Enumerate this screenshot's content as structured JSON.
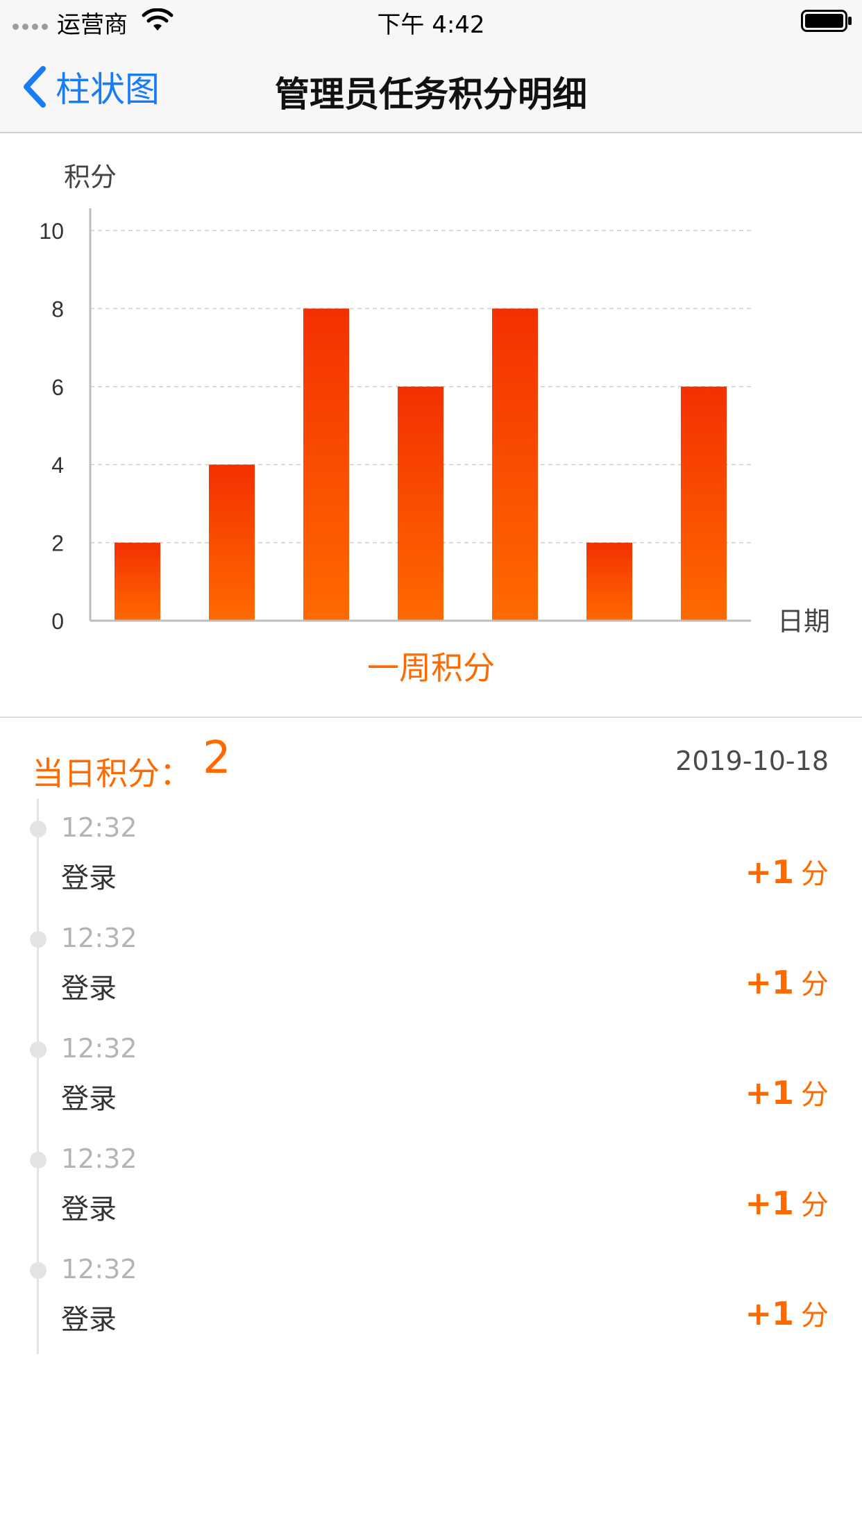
{
  "status_bar": {
    "carrier": "运营商",
    "time": "下午 4:42",
    "icons": [
      "signal-dots-icon",
      "wifi-icon",
      "battery-icon"
    ]
  },
  "nav": {
    "back_label": "柱状图",
    "title": "管理员任务积分明细",
    "accent_color": "#1a7cf5"
  },
  "chart_data": {
    "type": "bar",
    "ylabel": "积分",
    "xlabel": "日期",
    "title": "一周积分",
    "values": [
      2,
      4,
      8,
      6,
      8,
      2,
      6
    ],
    "ylim": [
      0,
      10
    ],
    "yticks": [
      0,
      2,
      4,
      6,
      8,
      10
    ],
    "grid": true,
    "colors": {
      "bar_top": "#f33000",
      "bar_bottom": "#ff6a00",
      "title": "#ff6a00"
    }
  },
  "daily": {
    "label": "当日积分：",
    "value": "2",
    "date": "2019-10-18",
    "accent_color": "#ff6a00"
  },
  "records": [
    {
      "time": "12:32",
      "event": "登录",
      "points": "+1",
      "unit": "分"
    },
    {
      "time": "12:32",
      "event": "登录",
      "points": "+1",
      "unit": "分"
    },
    {
      "time": "12:32",
      "event": "登录",
      "points": "+1",
      "unit": "分"
    },
    {
      "time": "12:32",
      "event": "登录",
      "points": "+1",
      "unit": "分"
    },
    {
      "time": "12:32",
      "event": "登录",
      "points": "+1",
      "unit": "分"
    }
  ]
}
